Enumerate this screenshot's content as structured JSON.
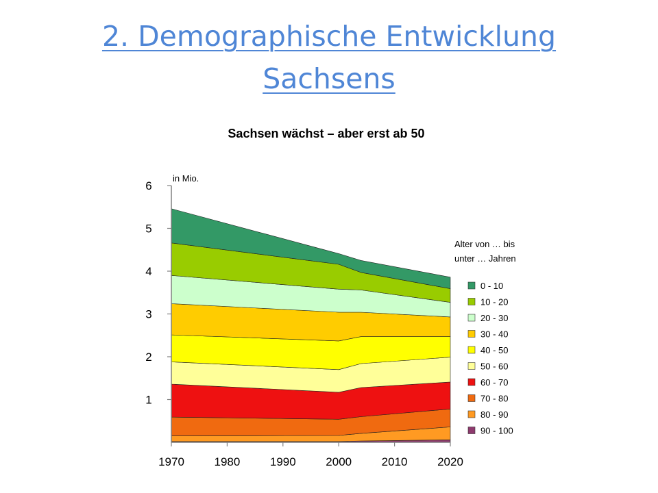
{
  "slide": {
    "title_line1": "2. Demographische Entwicklung",
    "title_line2": "Sachsens"
  },
  "chart_data": {
    "type": "area",
    "stacked": true,
    "title": "Sachsen wächst – aber erst ab 50",
    "ylabel": "in Mio.",
    "legend_title": [
      "Alter von … bis",
      "unter … Jahren"
    ],
    "legend_position": "right",
    "x": [
      1970,
      2000,
      2004,
      2020
    ],
    "xticks": [
      1970,
      1980,
      1990,
      2000,
      2010,
      2020
    ],
    "yticks": [
      1,
      2,
      3,
      4,
      5,
      6
    ],
    "xlim": [
      1970,
      2020
    ],
    "ylim": [
      0,
      6
    ],
    "grid": false,
    "series": [
      {
        "name": "90 - 100",
        "color": "#8e3a6e",
        "values": [
          0.02,
          0.02,
          0.03,
          0.06
        ]
      },
      {
        "name": "80 - 90",
        "color": "#ff9a22",
        "values": [
          0.13,
          0.14,
          0.18,
          0.3
        ]
      },
      {
        "name": "70 - 80",
        "color": "#f06a10",
        "values": [
          0.44,
          0.38,
          0.39,
          0.42
        ]
      },
      {
        "name": "60 - 70",
        "color": "#ee1111",
        "values": [
          0.77,
          0.63,
          0.68,
          0.63
        ]
      },
      {
        "name": "50 - 60",
        "color": "#ffff99",
        "values": [
          0.52,
          0.53,
          0.56,
          0.58
        ]
      },
      {
        "name": "40 - 50",
        "color": "#ffff00",
        "values": [
          0.63,
          0.67,
          0.63,
          0.48
        ]
      },
      {
        "name": "30 - 40",
        "color": "#ffcc00",
        "values": [
          0.73,
          0.67,
          0.57,
          0.46
        ]
      },
      {
        "name": "20 - 30",
        "color": "#ccffcc",
        "values": [
          0.66,
          0.54,
          0.52,
          0.34
        ]
      },
      {
        "name": "10 - 20",
        "color": "#99cc00",
        "values": [
          0.76,
          0.58,
          0.41,
          0.32
        ]
      },
      {
        "name": "0 - 10",
        "color": "#339966",
        "values": [
          0.8,
          0.25,
          0.28,
          0.27
        ]
      }
    ]
  }
}
